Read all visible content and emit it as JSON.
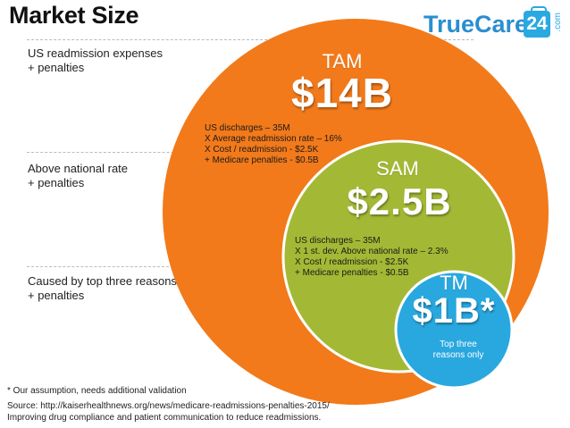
{
  "title": "Market Size",
  "logo": {
    "wordmark": "TrueCare",
    "number": "24",
    "suffix": ".com"
  },
  "layers": [
    {
      "label_line1": "US readmission expenses",
      "label_line2": "+ penalties"
    },
    {
      "label_line1": "Above national rate",
      "label_line2": "+ penalties"
    },
    {
      "label_line1": "Caused by top three reasons",
      "label_line2": "+ penalties"
    }
  ],
  "tam": {
    "abbr": "TAM",
    "value": "$14B",
    "color": "#f27a1a",
    "calc": [
      "US discharges – 35M",
      "X Average readmission rate – 16%",
      "X Cost / readmission - $2.5K",
      "+ Medicare penalties - $0.5B"
    ]
  },
  "sam": {
    "abbr": "SAM",
    "value": "$2.5B",
    "color": "#a3b935",
    "calc": [
      "US discharges – 35M",
      "X 1 st. dev. Above national rate – 2.3%",
      "X Cost / readmission - $2.5K",
      "+ Medicare penalties - $0.5B"
    ]
  },
  "tm": {
    "abbr": "TM",
    "value": "$1B*",
    "color": "#29a8df",
    "note_line1": "Top three",
    "note_line2": "reasons only"
  },
  "footnotes": {
    "assumption": "* Our assumption, needs additional validation",
    "source": "Source: http://kaiserhealthnews.org/news/medicare-readmissions-penalties-2015/",
    "improving": "Improving drug compliance and patient communication to reduce readmissions."
  }
}
